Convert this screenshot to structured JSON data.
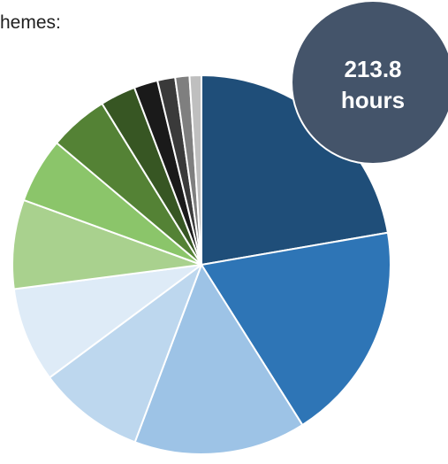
{
  "header": {
    "text": "hemes:"
  },
  "badge": {
    "value": "213.8",
    "unit": "hours"
  },
  "chart_data": {
    "type": "pie",
    "title": "",
    "start_angle_deg": 0,
    "direction": "clockwise",
    "slices": [
      {
        "value": 22.0,
        "color": "#1f4e79"
      },
      {
        "value": 18.5,
        "color": "#2e75b6"
      },
      {
        "value": 14.5,
        "color": "#9dc3e6"
      },
      {
        "value": 9.0,
        "color": "#bdd7ee"
      },
      {
        "value": 8.0,
        "color": "#deebf7"
      },
      {
        "value": 7.5,
        "color": "#a9d18e"
      },
      {
        "value": 5.5,
        "color": "#8bc56a"
      },
      {
        "value": 5.0,
        "color": "#548235"
      },
      {
        "value": 3.0,
        "color": "#375623"
      },
      {
        "value": 2.0,
        "color": "#1a1a1a"
      },
      {
        "value": 1.5,
        "color": "#3a3a3a"
      },
      {
        "value": 1.2,
        "color": "#7f7f7f"
      },
      {
        "value": 1.0,
        "color": "#bfbfbf"
      }
    ]
  }
}
